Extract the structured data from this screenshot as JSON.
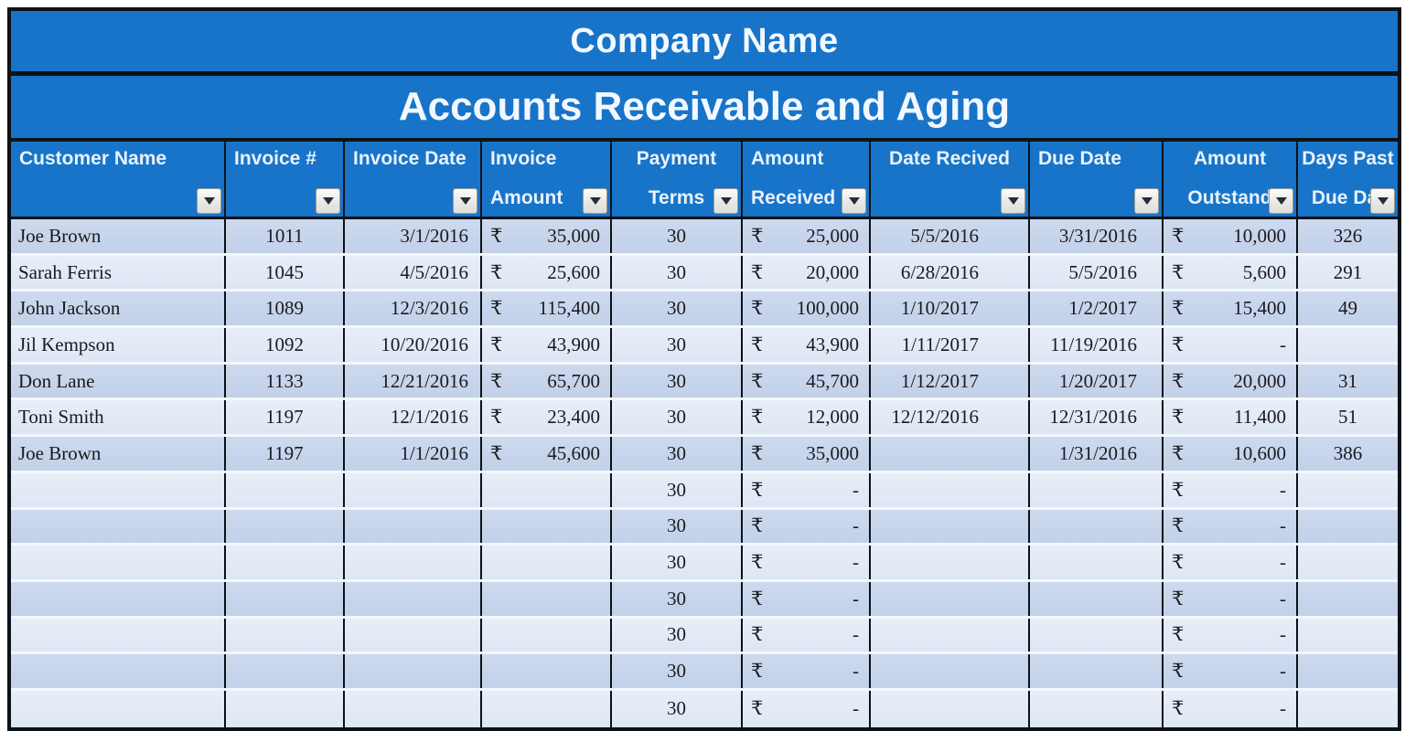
{
  "header": {
    "company_title": "Company Name",
    "report_title": "Accounts Receivable and Aging"
  },
  "table": {
    "currency_symbol": "₹",
    "columns": [
      {
        "id": "customer-name",
        "lines": [
          "Customer Name"
        ]
      },
      {
        "id": "invoice-number",
        "lines": [
          "Invoice #"
        ]
      },
      {
        "id": "invoice-date",
        "lines": [
          "Invoice Date"
        ]
      },
      {
        "id": "invoice-amount",
        "lines": [
          "Invoice",
          "Amount"
        ]
      },
      {
        "id": "payment-terms",
        "lines": [
          "Payment",
          "Terms"
        ]
      },
      {
        "id": "amount-received",
        "lines": [
          "Amount",
          "Received"
        ]
      },
      {
        "id": "date-recived",
        "lines": [
          "Date Recived"
        ]
      },
      {
        "id": "due-date",
        "lines": [
          "Due Date"
        ]
      },
      {
        "id": "amount-outstanding",
        "lines": [
          "Amount",
          "Outstand"
        ]
      },
      {
        "id": "days-past-due-date",
        "lines": [
          "Days Past",
          "Due Dat"
        ]
      }
    ],
    "rows": [
      [
        "Joe Brown",
        "1011",
        "3/1/2016",
        "35,000",
        "30",
        "25,000",
        "5/5/2016",
        "3/31/2016",
        "10,000",
        "326"
      ],
      [
        "Sarah Ferris",
        "1045",
        "4/5/2016",
        "25,600",
        "30",
        "20,000",
        "6/28/2016",
        "5/5/2016",
        "5,600",
        "291"
      ],
      [
        "John Jackson",
        "1089",
        "12/3/2016",
        "115,400",
        "30",
        "100,000",
        "1/10/2017",
        "1/2/2017",
        "15,400",
        "49"
      ],
      [
        "Jil Kempson",
        "1092",
        "10/20/2016",
        "43,900",
        "30",
        "43,900",
        "1/11/2017",
        "11/19/2016",
        "-",
        ""
      ],
      [
        "Don Lane",
        "1133",
        "12/21/2016",
        "65,700",
        "30",
        "45,700",
        "1/12/2017",
        "1/20/2017",
        "20,000",
        "31"
      ],
      [
        "Toni Smith",
        "1197",
        "12/1/2016",
        "23,400",
        "30",
        "12,000",
        "12/12/2016",
        "12/31/2016",
        "11,400",
        "51"
      ],
      [
        "Joe Brown",
        "1197",
        "1/1/2016",
        "45,600",
        "30",
        "35,000",
        "",
        "1/31/2016",
        "10,600",
        "386"
      ],
      [
        "",
        "",
        "",
        "",
        "30",
        "-",
        "",
        "",
        "-",
        ""
      ],
      [
        "",
        "",
        "",
        "",
        "30",
        "-",
        "",
        "",
        "-",
        ""
      ],
      [
        "",
        "",
        "",
        "",
        "30",
        "-",
        "",
        "",
        "-",
        ""
      ],
      [
        "",
        "",
        "",
        "",
        "30",
        "-",
        "",
        "",
        "-",
        ""
      ],
      [
        "",
        "",
        "",
        "",
        "30",
        "-",
        "",
        "",
        "-",
        ""
      ],
      [
        "",
        "",
        "",
        "",
        "30",
        "-",
        "",
        "",
        "-",
        ""
      ],
      [
        "",
        "",
        "",
        "",
        "30",
        "-",
        "",
        "",
        "-",
        ""
      ]
    ]
  },
  "colors": {
    "band_blue": "#1874c8",
    "grid_line": "#0d1218",
    "row_odd": "#c2d1e9",
    "row_even": "#dde7f4"
  }
}
